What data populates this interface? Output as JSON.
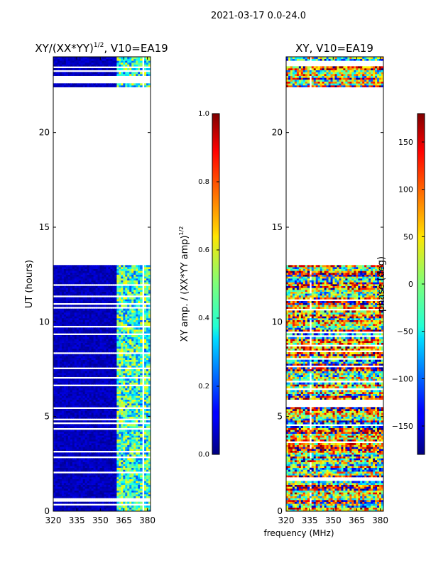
{
  "figure": {
    "suptitle": "2021-03-17 0.0-24.0",
    "xlabel": "frequency (MHz)"
  },
  "chart_data": [
    {
      "type": "heatmap",
      "title": "XY/(XX*YY)",
      "title_superscript": "1/2",
      "title_suffix": ", V10=EA19",
      "ylabel": "UT (hours)",
      "xlim": [
        320,
        382
      ],
      "ylim": [
        0,
        24
      ],
      "xticks": [
        "320",
        "335",
        "350",
        "365",
        "380"
      ],
      "yticks": [
        "0",
        "5",
        "10",
        "15",
        "20"
      ],
      "data_gaps_hours": [
        [
          13.0,
          22.4
        ],
        [
          22.7,
          22.9
        ]
      ],
      "colorbar": {
        "label": "XY amp. / (XX*YY amp)",
        "label_superscript": "1/2",
        "range": [
          0.0,
          1.0
        ],
        "ticks": [
          "0.0",
          "0.2",
          "0.4",
          "0.6",
          "0.8",
          "1.0"
        ],
        "colormap": "jet"
      }
    },
    {
      "type": "heatmap",
      "title": "XY, V10=EA19",
      "xlim": [
        320,
        382
      ],
      "ylim": [
        0,
        24
      ],
      "xticks": [
        "320",
        "335",
        "350",
        "365",
        "380"
      ],
      "yticks": [
        "0",
        "5",
        "10",
        "15",
        "20"
      ],
      "data_gaps_hours": [
        [
          13.0,
          22.4
        ]
      ],
      "colorbar": {
        "label": "phase (deg)",
        "range": [
          -180,
          180
        ],
        "ticks": [
          "−150",
          "−100",
          "−50",
          "0",
          "50",
          "100",
          "150"
        ],
        "colormap": "jet"
      }
    }
  ]
}
